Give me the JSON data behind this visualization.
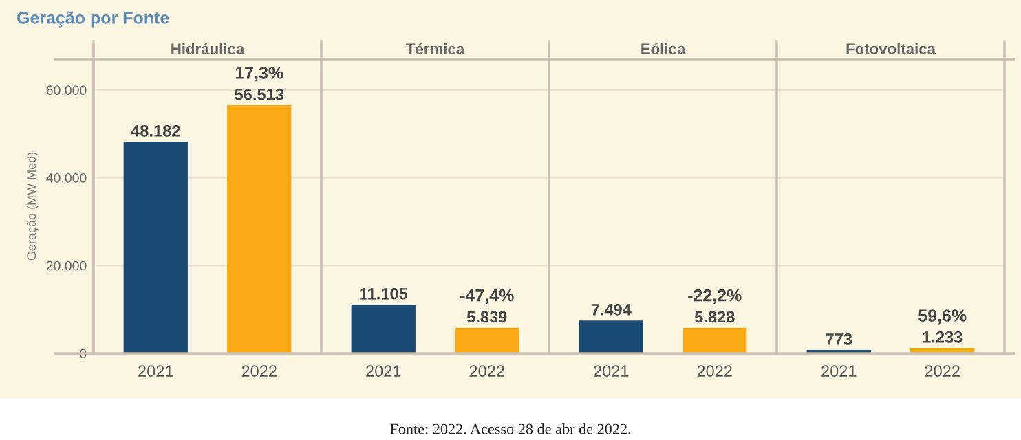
{
  "chart_data": [
    {
      "type": "bar",
      "title": "Hidráulica",
      "ylabel": "Geração (MW Med)",
      "categories": [
        "2021",
        "2022"
      ],
      "values": [
        48182,
        56513
      ],
      "colors": [
        "#1b4a72",
        "#fca913"
      ],
      "value_labels": [
        "48.182",
        "56.513"
      ],
      "ylim": [
        0,
        67000
      ],
      "yticks": [
        {
          "value": 0,
          "label": "0"
        },
        {
          "value": 20000,
          "label": "20.000"
        },
        {
          "value": 40000,
          "label": "40.000"
        },
        {
          "value": 60000,
          "label": "60.000"
        }
      ],
      "grid": "y",
      "tick_labels": "xy",
      "annotations": [
        "Geração por Fonte",
        {
          "text": "17,3%",
          "x": "2022",
          "y": 56513
        }
      ]
    },
    {
      "type": "bar",
      "title": "Térmica",
      "categories": [
        "2021",
        "2022"
      ],
      "values": [
        11105,
        5839
      ],
      "colors": [
        "#1b4a72",
        "#fca913"
      ],
      "value_labels": [
        "11.105",
        "5.839"
      ],
      "ylim": [
        0,
        67000
      ],
      "yticks": [
        {
          "value": 0,
          "label": null
        },
        {
          "value": 20000,
          "label": null
        },
        {
          "value": 40000,
          "label": null
        },
        {
          "value": 60000,
          "label": null
        }
      ],
      "grid": "y",
      "tick_labels": "x",
      "annotations": [
        {
          "text": "-47,4%",
          "x": "2022",
          "y": 5839
        }
      ]
    },
    {
      "type": "bar",
      "title": "Eólica",
      "categories": [
        "2021",
        "2022"
      ],
      "values": [
        7494,
        5828
      ],
      "colors": [
        "#1b4a72",
        "#fca913"
      ],
      "value_labels": [
        "7.494",
        "5.828"
      ],
      "ylim": [
        0,
        67000
      ],
      "yticks": [
        {
          "value": 0,
          "label": null
        },
        {
          "value": 20000,
          "label": null
        },
        {
          "value": 40000,
          "label": null
        },
        {
          "value": 60000,
          "label": null
        }
      ],
      "grid": "y",
      "tick_labels": "x",
      "annotations": [
        {
          "text": "-22,2%",
          "x": "2022",
          "y": 5828
        }
      ]
    },
    {
      "type": "bar",
      "title": "Fotovoltaica",
      "categories": [
        "2021",
        "2022"
      ],
      "values": [
        773,
        1233
      ],
      "colors": [
        "#1b4a72",
        "#fca913"
      ],
      "value_labels": [
        "773",
        "1.233"
      ],
      "ylim": [
        0,
        67000
      ],
      "yticks": [
        {
          "value": 0,
          "label": null
        },
        {
          "value": 20000,
          "label": null
        },
        {
          "value": 40000,
          "label": null
        },
        {
          "value": 60000,
          "label": null
        }
      ],
      "grid": "y",
      "tick_labels": "x",
      "annotations": [
        {
          "text": "59,6%",
          "x": "2022",
          "y": 1233
        },
        "Fonte: 2022. Acesso 28 de abr de 2022."
      ]
    }
  ]
}
